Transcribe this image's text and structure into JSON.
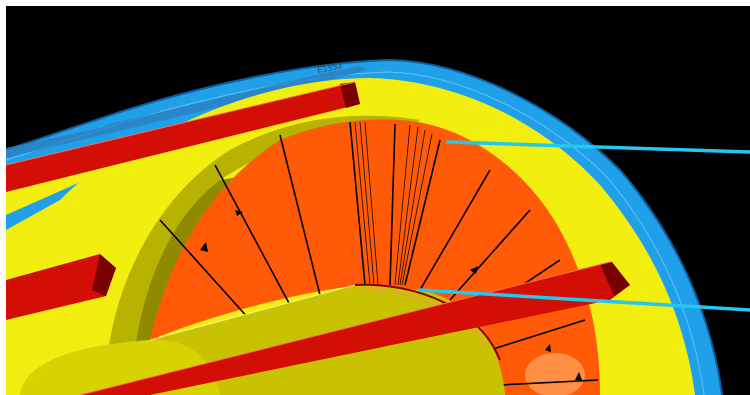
{
  "scene": {
    "background_color": "#000000",
    "frame_color": "#ffffff",
    "dimension_label": "E1552",
    "colors": {
      "outer_shell": "#1fa0e8",
      "shell_edge": "#0b5fa0",
      "end_plate": "#f2ee10",
      "inner_bore": "#b8b200",
      "cone_orange": "#ff5a08",
      "cone_highlight": "#ff9a50",
      "rib_red": "#d20e05",
      "rib_shadow": "#7a0000",
      "ruling_lines": "#000000",
      "callout_lines": "#22c8f0"
    },
    "components": [
      "outer-shell-icon",
      "end-plate-icon",
      "inner-cone-icon",
      "inner-cylinder-icon",
      "rib-beam-icon",
      "callout-line-icon"
    ]
  }
}
